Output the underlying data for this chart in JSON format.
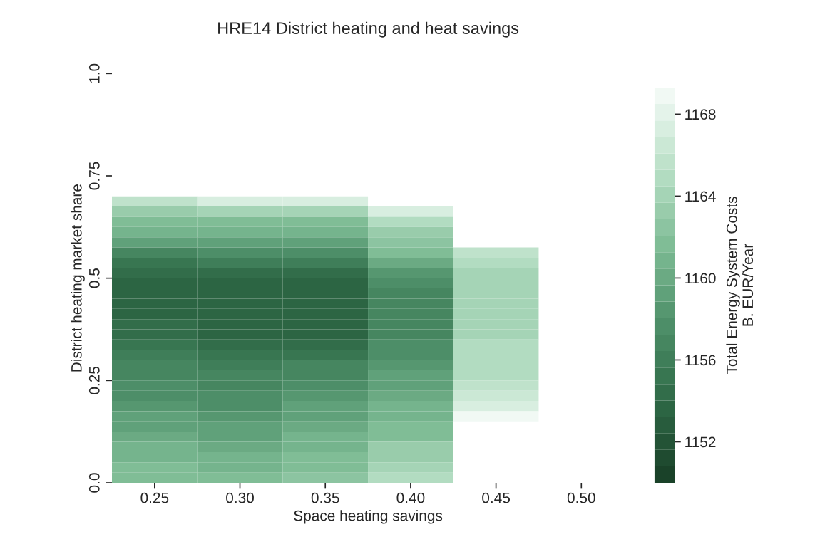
{
  "chart_data": {
    "type": "heatmap",
    "title": "HRE14 District heating and heat savings",
    "xlabel": "Space heating savings",
    "ylabel": "District heating market share",
    "clabel": "Total Energy System Costs\nB. EUR/Year",
    "categories": [
      "0.25",
      "0.30",
      "0.35",
      "0.40",
      "0.45",
      "0.50"
    ],
    "y": [
      0.6875,
      0.6625,
      0.6375,
      0.6125,
      0.5875,
      0.5625,
      0.5375,
      0.5125,
      0.4875,
      0.4625,
      0.4375,
      0.4125,
      0.3875,
      0.3625,
      0.3375,
      0.3125,
      0.2875,
      0.2625,
      0.2375,
      0.2125,
      0.1875,
      0.1625,
      0.1375,
      0.1125,
      0.0875,
      0.0625,
      0.0375,
      0.0125
    ],
    "ylim": [
      0,
      1
    ],
    "yticks": [
      {
        "value": 0,
        "label": "0.0"
      },
      0.25,
      {
        "value": 0.5,
        "label": "0.5"
      },
      0.75,
      {
        "value": 1,
        "label": "1.0"
      }
    ],
    "clim": [
      1150,
      1169.3
    ],
    "cticks": [
      1152,
      1156,
      1160,
      1164,
      1168
    ],
    "cells": [
      [
        1166,
        1167.5,
        1167.5,
        null,
        null,
        null
      ],
      [
        1163,
        1164,
        1164,
        1167,
        null,
        null
      ],
      [
        1161.5,
        1162,
        1161.5,
        1165,
        null,
        null
      ],
      [
        1160.5,
        1160.5,
        1160.5,
        1163.5,
        null,
        null
      ],
      [
        1159,
        1159.5,
        1159,
        1162.5,
        null,
        null
      ],
      [
        1157,
        1158,
        1157.5,
        1161.5,
        1166,
        null
      ],
      [
        1155.5,
        1156,
        1156,
        1160,
        1164.5,
        null
      ],
      [
        1154.5,
        1154.5,
        1154.5,
        1158.5,
        1164,
        null
      ],
      [
        1154,
        1153.5,
        1153.5,
        1157.5,
        1164,
        null
      ],
      [
        1154,
        1153.5,
        1153.5,
        1157,
        1164,
        null
      ],
      [
        1153.5,
        1153.5,
        1153.5,
        1156.5,
        1164,
        null
      ],
      [
        1153.5,
        1153.5,
        1153.5,
        1156.5,
        1164,
        null
      ],
      [
        1154.5,
        1153.5,
        1153.5,
        1157,
        1164,
        null
      ],
      [
        1154.5,
        1153.5,
        1153.5,
        1157,
        1164,
        null
      ],
      [
        1155,
        1154.5,
        1154.5,
        1157.5,
        1164.5,
        null
      ],
      [
        1156,
        1155,
        1155.5,
        1158,
        1164.5,
        null
      ],
      [
        1156.5,
        1156,
        1156.5,
        1158.5,
        1164.5,
        null
      ],
      [
        1157,
        1156.5,
        1157,
        1159,
        1165,
        null
      ],
      [
        1157.5,
        1157,
        1158,
        1159.5,
        1166,
        null
      ],
      [
        1158,
        1157.5,
        1158.5,
        1160,
        1166.5,
        null
      ],
      [
        1158.5,
        1158,
        1159,
        1160.5,
        1167.5,
        null
      ],
      [
        1159,
        1158.5,
        1159.5,
        1161,
        1168.5,
        null
      ],
      [
        1159.5,
        1159,
        1160,
        1161.5,
        null,
        null
      ],
      [
        1160,
        1159.5,
        1160.5,
        1162,
        null,
        null
      ],
      [
        1160.5,
        1160,
        1161,
        1163,
        null,
        null
      ],
      [
        1161,
        1160.5,
        1161.5,
        1163.5,
        null,
        null
      ],
      [
        1161.5,
        1161,
        1162,
        1164,
        null,
        null
      ],
      [
        1162,
        1161.5,
        1162.5,
        1165,
        null,
        null
      ]
    ]
  }
}
